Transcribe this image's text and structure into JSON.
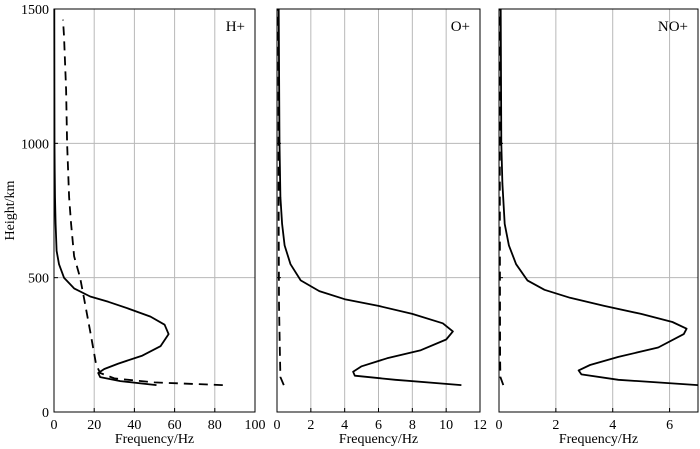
{
  "chart_data": [
    {
      "type": "line",
      "panel_label": "H+",
      "xlabel": "Frequency/Hz",
      "ylabel": "Height/km",
      "xlim": [
        0,
        100
      ],
      "ylim": [
        0,
        1500
      ],
      "xticks": [
        0,
        20,
        40,
        60,
        80,
        100
      ],
      "yticks": [
        0,
        500,
        1000,
        1500
      ],
      "grid": true,
      "series": [
        {
          "style": "solid",
          "points": [
            [
              51,
              100
            ],
            [
              33,
              115
            ],
            [
              23,
              130
            ],
            [
              22,
              145
            ],
            [
              25,
              160
            ],
            [
              32,
              180
            ],
            [
              44,
              210
            ],
            [
              53,
              245
            ],
            [
              57,
              290
            ],
            [
              55,
              325
            ],
            [
              48,
              355
            ],
            [
              37,
              385
            ],
            [
              27,
              410
            ],
            [
              18,
              430
            ],
            [
              10,
              460
            ],
            [
              5,
              500
            ],
            [
              2.5,
              550
            ],
            [
              1.3,
              600
            ],
            [
              0.8,
              700
            ],
            [
              0.5,
              800
            ],
            [
              0.35,
              900
            ],
            [
              0.25,
              1000
            ],
            [
              0.2,
              1200
            ],
            [
              0.15,
              1500
            ]
          ]
        },
        {
          "style": "dashed",
          "points": [
            [
              84,
              100
            ],
            [
              50,
              110
            ],
            [
              30,
              125
            ],
            [
              23,
              145
            ],
            [
              21,
              175
            ],
            [
              18,
              300
            ],
            [
              15,
              420
            ],
            [
              13,
              500
            ],
            [
              10,
              580
            ],
            [
              8.5,
              700
            ],
            [
              7.5,
              800
            ],
            [
              6.5,
              1000
            ],
            [
              6,
              1200
            ],
            [
              5,
              1400
            ],
            [
              4.5,
              1460
            ]
          ]
        }
      ]
    },
    {
      "type": "line",
      "panel_label": "O+",
      "xlabel": "Frequency/Hz",
      "xlim": [
        0,
        12
      ],
      "ylim": [
        0,
        1500
      ],
      "xticks": [
        0,
        2,
        4,
        6,
        8,
        10,
        12
      ],
      "grid": true,
      "series": [
        {
          "style": "solid",
          "points": [
            [
              10.9,
              100
            ],
            [
              7,
              120
            ],
            [
              4.6,
              135
            ],
            [
              4.5,
              150
            ],
            [
              5,
              170
            ],
            [
              6.5,
              200
            ],
            [
              8.5,
              230
            ],
            [
              10,
              270
            ],
            [
              10.4,
              300
            ],
            [
              9.8,
              330
            ],
            [
              8,
              365
            ],
            [
              6,
              395
            ],
            [
              4,
              420
            ],
            [
              2.5,
              450
            ],
            [
              1.4,
              490
            ],
            [
              0.8,
              550
            ],
            [
              0.45,
              620
            ],
            [
              0.3,
              700
            ],
            [
              0.2,
              800
            ],
            [
              0.15,
              1000
            ],
            [
              0.1,
              1500
            ]
          ]
        },
        {
          "style": "dashed",
          "points": [
            [
              0.4,
              100
            ],
            [
              0.2,
              130
            ],
            [
              0.18,
              200
            ],
            [
              0.12,
              400
            ],
            [
              0.1,
              700
            ],
            [
              0.08,
              1500
            ]
          ]
        }
      ]
    },
    {
      "type": "line",
      "panel_label": "NO+",
      "xlabel": "Frequency/Hz",
      "xlim": [
        0,
        7
      ],
      "ylim": [
        0,
        1500
      ],
      "xticks": [
        0,
        2,
        4,
        6
      ],
      "grid": true,
      "series": [
        {
          "style": "solid",
          "points": [
            [
              7,
              100
            ],
            [
              4.2,
              120
            ],
            [
              2.9,
              140
            ],
            [
              2.8,
              155
            ],
            [
              3.2,
              175
            ],
            [
              4.2,
              205
            ],
            [
              5.6,
              240
            ],
            [
              6.5,
              290
            ],
            [
              6.6,
              310
            ],
            [
              6.1,
              335
            ],
            [
              5,
              365
            ],
            [
              3.7,
              395
            ],
            [
              2.5,
              425
            ],
            [
              1.6,
              455
            ],
            [
              1,
              490
            ],
            [
              0.6,
              550
            ],
            [
              0.35,
              620
            ],
            [
              0.2,
              700
            ],
            [
              0.12,
              850
            ],
            [
              0.08,
              1000
            ],
            [
              0.06,
              1500
            ]
          ]
        },
        {
          "style": "dashed",
          "points": [
            [
              0.15,
              100
            ],
            [
              0.05,
              130
            ],
            [
              0.04,
              200
            ],
            [
              0.03,
              600
            ],
            [
              0.02,
              1500
            ]
          ]
        }
      ]
    }
  ]
}
